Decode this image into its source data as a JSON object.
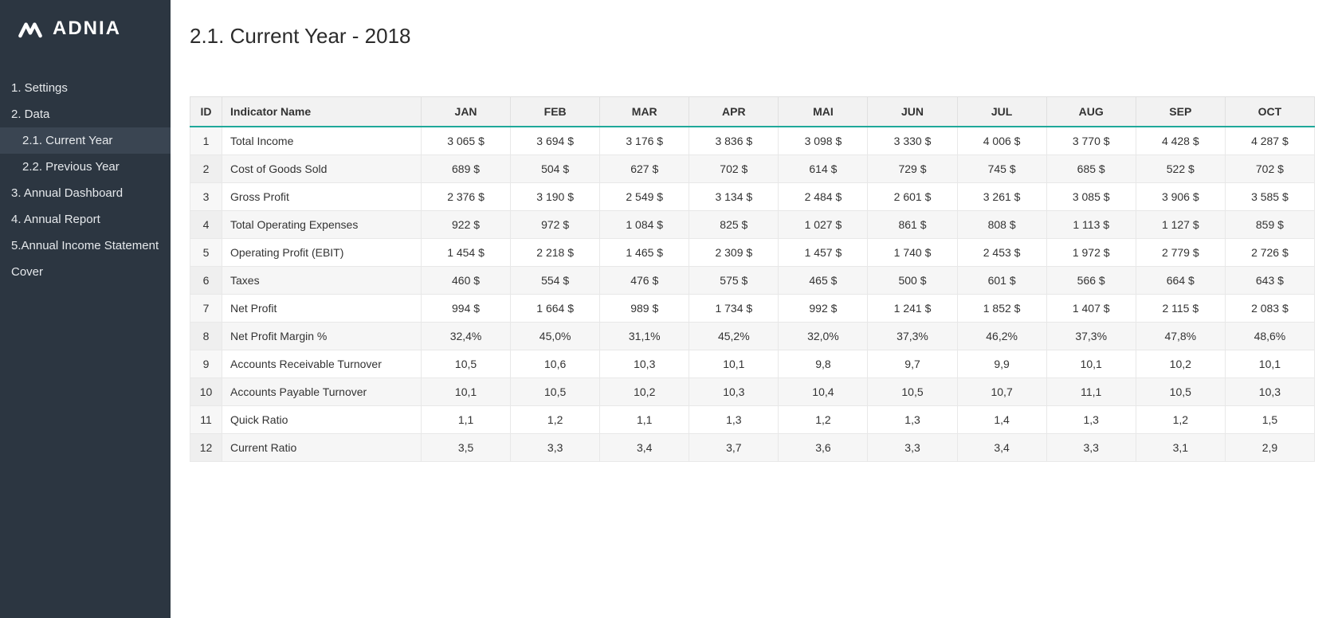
{
  "brand": {
    "name": "ADNIA"
  },
  "sidebar": {
    "items": [
      {
        "label": "1. Settings",
        "sub": false,
        "active": false
      },
      {
        "label": "2. Data",
        "sub": false,
        "active": false
      },
      {
        "label": "2.1. Current Year",
        "sub": true,
        "active": true
      },
      {
        "label": "2.2. Previous Year",
        "sub": true,
        "active": false
      },
      {
        "label": "3. Annual Dashboard",
        "sub": false,
        "active": false
      },
      {
        "label": "4. Annual Report",
        "sub": false,
        "active": false
      },
      {
        "label": "5.Annual Income Statement",
        "sub": false,
        "active": false
      },
      {
        "label": "Cover",
        "sub": false,
        "active": false
      }
    ]
  },
  "page": {
    "title": "2.1. Current Year - 2018"
  },
  "table": {
    "columns": [
      "ID",
      "Indicator Name",
      "JAN",
      "FEB",
      "MAR",
      "APR",
      "MAI",
      "JUN",
      "JUL",
      "AUG",
      "SEP",
      "OCT"
    ],
    "rows": [
      {
        "id": "1",
        "name": "Total Income",
        "values": [
          "3 065 $",
          "3 694 $",
          "3 176 $",
          "3 836 $",
          "3 098 $",
          "3 330 $",
          "4 006 $",
          "3 770 $",
          "4 428 $",
          "4 287 $"
        ]
      },
      {
        "id": "2",
        "name": "Cost of Goods Sold",
        "values": [
          "689 $",
          "504 $",
          "627 $",
          "702 $",
          "614 $",
          "729 $",
          "745 $",
          "685 $",
          "522 $",
          "702 $"
        ]
      },
      {
        "id": "3",
        "name": "Gross Profit",
        "values": [
          "2 376 $",
          "3 190 $",
          "2 549 $",
          "3 134 $",
          "2 484 $",
          "2 601 $",
          "3 261 $",
          "3 085 $",
          "3 906 $",
          "3 585 $"
        ]
      },
      {
        "id": "4",
        "name": "Total Operating Expenses",
        "values": [
          "922 $",
          "972 $",
          "1 084 $",
          "825 $",
          "1 027 $",
          "861 $",
          "808 $",
          "1 113 $",
          "1 127 $",
          "859 $"
        ]
      },
      {
        "id": "5",
        "name": "Operating Profit (EBIT)",
        "values": [
          "1 454 $",
          "2 218 $",
          "1 465 $",
          "2 309 $",
          "1 457 $",
          "1 740 $",
          "2 453 $",
          "1 972 $",
          "2 779 $",
          "2 726 $"
        ]
      },
      {
        "id": "6",
        "name": "Taxes",
        "values": [
          "460 $",
          "554 $",
          "476 $",
          "575 $",
          "465 $",
          "500 $",
          "601 $",
          "566 $",
          "664 $",
          "643 $"
        ]
      },
      {
        "id": "7",
        "name": "Net Profit",
        "values": [
          "994 $",
          "1 664 $",
          "989 $",
          "1 734 $",
          "992 $",
          "1 241 $",
          "1 852 $",
          "1 407 $",
          "2 115 $",
          "2 083 $"
        ]
      },
      {
        "id": "8",
        "name": "Net Profit Margin %",
        "values": [
          "32,4%",
          "45,0%",
          "31,1%",
          "45,2%",
          "32,0%",
          "37,3%",
          "46,2%",
          "37,3%",
          "47,8%",
          "48,6%"
        ]
      },
      {
        "id": "9",
        "name": "Accounts Receivable Turnover",
        "values": [
          "10,5",
          "10,6",
          "10,3",
          "10,1",
          "9,8",
          "9,7",
          "9,9",
          "10,1",
          "10,2",
          "10,1"
        ]
      },
      {
        "id": "10",
        "name": "Accounts Payable Turnover",
        "values": [
          "10,1",
          "10,5",
          "10,2",
          "10,3",
          "10,4",
          "10,5",
          "10,7",
          "11,1",
          "10,5",
          "10,3"
        ]
      },
      {
        "id": "11",
        "name": "Quick Ratio",
        "values": [
          "1,1",
          "1,2",
          "1,1",
          "1,3",
          "1,2",
          "1,3",
          "1,4",
          "1,3",
          "1,2",
          "1,5"
        ]
      },
      {
        "id": "12",
        "name": "Current Ratio",
        "values": [
          "3,5",
          "3,3",
          "3,4",
          "3,7",
          "3,6",
          "3,3",
          "3,4",
          "3,3",
          "3,1",
          "2,9"
        ]
      }
    ]
  },
  "styling": {
    "sidebar_bg": "#2c3641",
    "sidebar_active_bg": "#3a4552",
    "accent_border": "#1fa89a",
    "header_bg": "#f2f2f2",
    "row_alt_bg": "#f6f6f6",
    "text_color": "#333333",
    "title_fontsize": 26,
    "body_fontsize": 14
  }
}
